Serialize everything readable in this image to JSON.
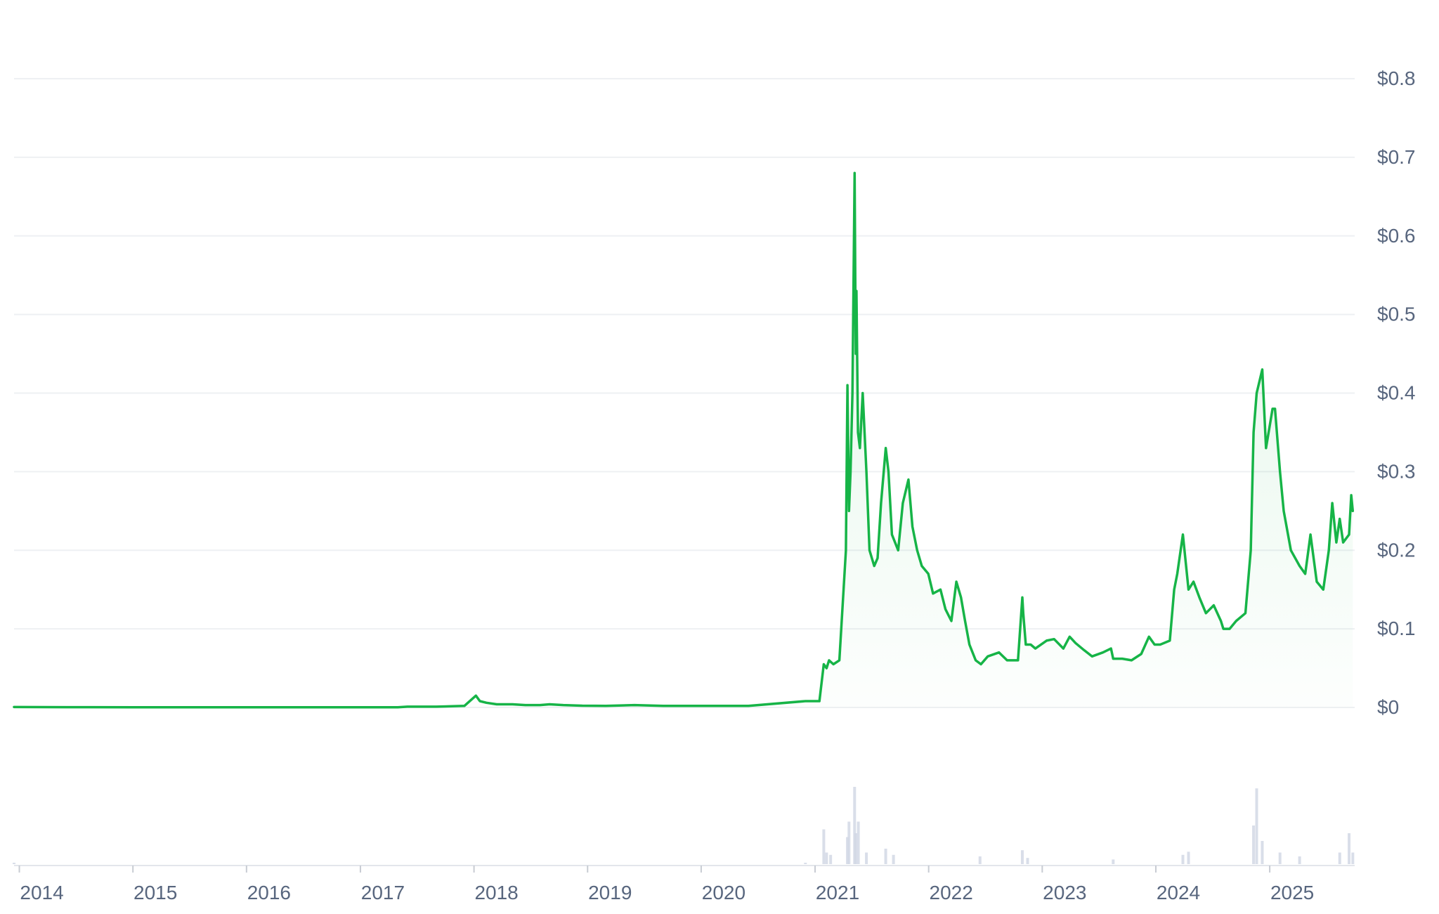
{
  "chart_data": {
    "type": "area",
    "title": "",
    "xlabel": "",
    "ylabel": "",
    "ylim": [
      0,
      0.8
    ],
    "xlim": [
      "2013-12-15",
      "2025-10-01"
    ],
    "grid": true,
    "legend": "none",
    "colors": {
      "line": "#16b447",
      "fill": "#16b447",
      "grid": "#eef0f3",
      "tick_text": "#58667e",
      "volume": "#cfd6e4"
    },
    "y_ticks": [
      {
        "value": 0,
        "label": "$0"
      },
      {
        "value": 0.1,
        "label": "$0.1"
      },
      {
        "value": 0.2,
        "label": "$0.2"
      },
      {
        "value": 0.3,
        "label": "$0.3"
      },
      {
        "value": 0.4,
        "label": "$0.4"
      },
      {
        "value": 0.5,
        "label": "$0.5"
      },
      {
        "value": 0.6,
        "label": "$0.6"
      },
      {
        "value": 0.7,
        "label": "$0.7"
      },
      {
        "value": 0.8,
        "label": "$0.8"
      }
    ],
    "x_ticks": [
      {
        "date": "2014-01-01",
        "label": "2014"
      },
      {
        "date": "2015-01-01",
        "label": "2015"
      },
      {
        "date": "2016-01-01",
        "label": "2016"
      },
      {
        "date": "2017-01-01",
        "label": "2017"
      },
      {
        "date": "2018-01-01",
        "label": "2018"
      },
      {
        "date": "2019-01-01",
        "label": "2019"
      },
      {
        "date": "2020-01-01",
        "label": "2020"
      },
      {
        "date": "2021-01-01",
        "label": "2021"
      },
      {
        "date": "2022-01-01",
        "label": "2022"
      },
      {
        "date": "2023-01-01",
        "label": "2023"
      },
      {
        "date": "2024-01-01",
        "label": "2024"
      },
      {
        "date": "2025-01-01",
        "label": "2025"
      }
    ],
    "series": [
      {
        "x": [
          "2013-12-15",
          "2014-06-01",
          "2015-01-01",
          "2016-01-01",
          "2017-01-01",
          "2017-05-01",
          "2017-06-01",
          "2017-09-01",
          "2017-12-01",
          "2018-01-07",
          "2018-01-20",
          "2018-02-10",
          "2018-03-15",
          "2018-05-05",
          "2018-06-15",
          "2018-08-01",
          "2018-09-01",
          "2018-10-15",
          "2018-12-15",
          "2019-03-01",
          "2019-06-01",
          "2019-09-01",
          "2020-01-01",
          "2020-06-01",
          "2020-12-01",
          "2021-01-15",
          "2021-01-29",
          "2021-02-07",
          "2021-02-15",
          "2021-03-01",
          "2021-03-20",
          "2021-04-10",
          "2021-04-15",
          "2021-04-20",
          "2021-04-25",
          "2021-05-01",
          "2021-05-08",
          "2021-05-10",
          "2021-05-12",
          "2021-05-14",
          "2021-05-19",
          "2021-05-25",
          "2021-06-03",
          "2021-06-15",
          "2021-06-25",
          "2021-07-10",
          "2021-07-21",
          "2021-08-01",
          "2021-08-16",
          "2021-08-25",
          "2021-09-05",
          "2021-09-25",
          "2021-10-10",
          "2021-10-28",
          "2021-11-10",
          "2021-11-25",
          "2021-12-10",
          "2021-12-31",
          "2022-01-15",
          "2022-02-08",
          "2022-02-24",
          "2022-03-15",
          "2022-03-31",
          "2022-04-15",
          "2022-04-28",
          "2022-05-12",
          "2022-06-01",
          "2022-06-18",
          "2022-07-10",
          "2022-08-15",
          "2022-09-10",
          "2022-10-15",
          "2022-10-29",
          "2022-11-01",
          "2022-11-09",
          "2022-11-25",
          "2022-12-10",
          "2023-01-15",
          "2023-02-08",
          "2023-03-10",
          "2023-03-30",
          "2023-04-18",
          "2023-05-15",
          "2023-06-10",
          "2023-07-15",
          "2023-08-10",
          "2023-08-17",
          "2023-09-15",
          "2023-10-15",
          "2023-11-15",
          "2023-12-10",
          "2023-12-28",
          "2024-01-15",
          "2024-02-15",
          "2024-02-29",
          "2024-03-10",
          "2024-03-28",
          "2024-04-15",
          "2024-05-01",
          "2024-05-20",
          "2024-06-10",
          "2024-07-05",
          "2024-07-28",
          "2024-08-05",
          "2024-08-25",
          "2024-09-15",
          "2024-10-15",
          "2024-11-01",
          "2024-11-10",
          "2024-11-20",
          "2024-12-08",
          "2024-12-20",
          "2025-01-10",
          "2025-01-18",
          "2025-02-03",
          "2025-02-15",
          "2025-03-10",
          "2025-04-07",
          "2025-04-25",
          "2025-05-12",
          "2025-06-01",
          "2025-06-22",
          "2025-07-10",
          "2025-07-21",
          "2025-08-03",
          "2025-08-14",
          "2025-08-25",
          "2025-09-13",
          "2025-09-20",
          "2025-09-25"
        ],
        "y": [
          0.0005,
          0.0004,
          0.0002,
          0.0002,
          0.0002,
          0.0003,
          0.001,
          0.001,
          0.002,
          0.015,
          0.008,
          0.006,
          0.004,
          0.004,
          0.003,
          0.003,
          0.004,
          0.003,
          0.0022,
          0.002,
          0.003,
          0.002,
          0.002,
          0.002,
          0.008,
          0.008,
          0.055,
          0.05,
          0.06,
          0.055,
          0.06,
          0.2,
          0.41,
          0.25,
          0.3,
          0.4,
          0.68,
          0.55,
          0.45,
          0.53,
          0.35,
          0.33,
          0.4,
          0.3,
          0.2,
          0.18,
          0.19,
          0.26,
          0.33,
          0.3,
          0.22,
          0.2,
          0.26,
          0.29,
          0.23,
          0.2,
          0.18,
          0.17,
          0.145,
          0.15,
          0.125,
          0.11,
          0.16,
          0.14,
          0.11,
          0.08,
          0.06,
          0.055,
          0.065,
          0.07,
          0.06,
          0.06,
          0.14,
          0.12,
          0.08,
          0.08,
          0.075,
          0.085,
          0.087,
          0.075,
          0.09,
          0.082,
          0.073,
          0.065,
          0.07,
          0.075,
          0.062,
          0.062,
          0.06,
          0.068,
          0.09,
          0.08,
          0.08,
          0.085,
          0.15,
          0.17,
          0.22,
          0.15,
          0.16,
          0.14,
          0.12,
          0.13,
          0.11,
          0.1,
          0.1,
          0.11,
          0.12,
          0.2,
          0.35,
          0.4,
          0.43,
          0.33,
          0.38,
          0.38,
          0.3,
          0.25,
          0.2,
          0.18,
          0.17,
          0.22,
          0.16,
          0.15,
          0.2,
          0.26,
          0.21,
          0.24,
          0.21,
          0.22,
          0.27,
          0.25
        ]
      }
    ],
    "volume": {
      "x": [
        "2013-12-15",
        "2020-12-01",
        "2021-01-29",
        "2021-02-07",
        "2021-02-20",
        "2021-04-15",
        "2021-04-20",
        "2021-05-08",
        "2021-05-12",
        "2021-05-20",
        "2021-06-15",
        "2021-08-16",
        "2021-09-10",
        "2022-06-15",
        "2022-10-29",
        "2022-11-15",
        "2023-08-17",
        "2024-03-28",
        "2024-04-15",
        "2024-11-10",
        "2024-11-20",
        "2024-12-08",
        "2025-02-03",
        "2025-04-07",
        "2025-08-14",
        "2025-09-13",
        "2025-09-25"
      ],
      "values": [
        0.005,
        0.01,
        0.45,
        0.15,
        0.12,
        0.35,
        0.55,
        1.0,
        0.4,
        0.55,
        0.15,
        0.2,
        0.12,
        0.1,
        0.18,
        0.08,
        0.06,
        0.12,
        0.16,
        0.5,
        0.98,
        0.3,
        0.15,
        0.1,
        0.15,
        0.4,
        0.15
      ]
    }
  }
}
